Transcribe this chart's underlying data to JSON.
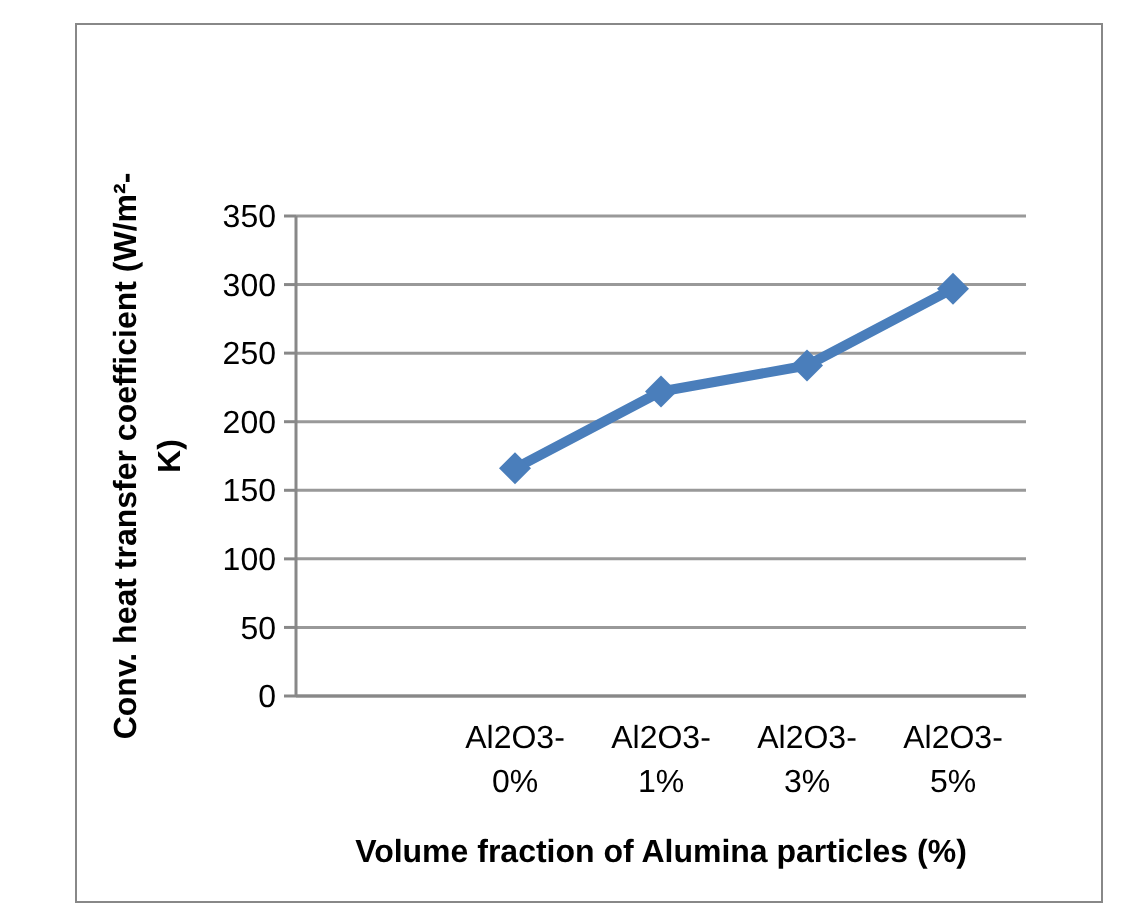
{
  "chart_data": {
    "type": "line",
    "xlabel": "Volume fraction of Alumina particles (%)",
    "ylabel": "Conv. heat transfer coefficient (W/m²-K)",
    "categories": [
      null,
      "Al2O3-0%",
      "Al2O3-1%",
      "Al2O3-3%",
      "Al2O3-5%"
    ],
    "series": [
      {
        "color": "#4a7ebb",
        "values": [
          null,
          166,
          222,
          241,
          297
        ]
      }
    ],
    "ylim": [
      0,
      350
    ],
    "yticks": [
      0,
      50,
      100,
      150,
      200,
      250,
      300,
      350
    ],
    "grid": "y",
    "marker": "diamond"
  }
}
